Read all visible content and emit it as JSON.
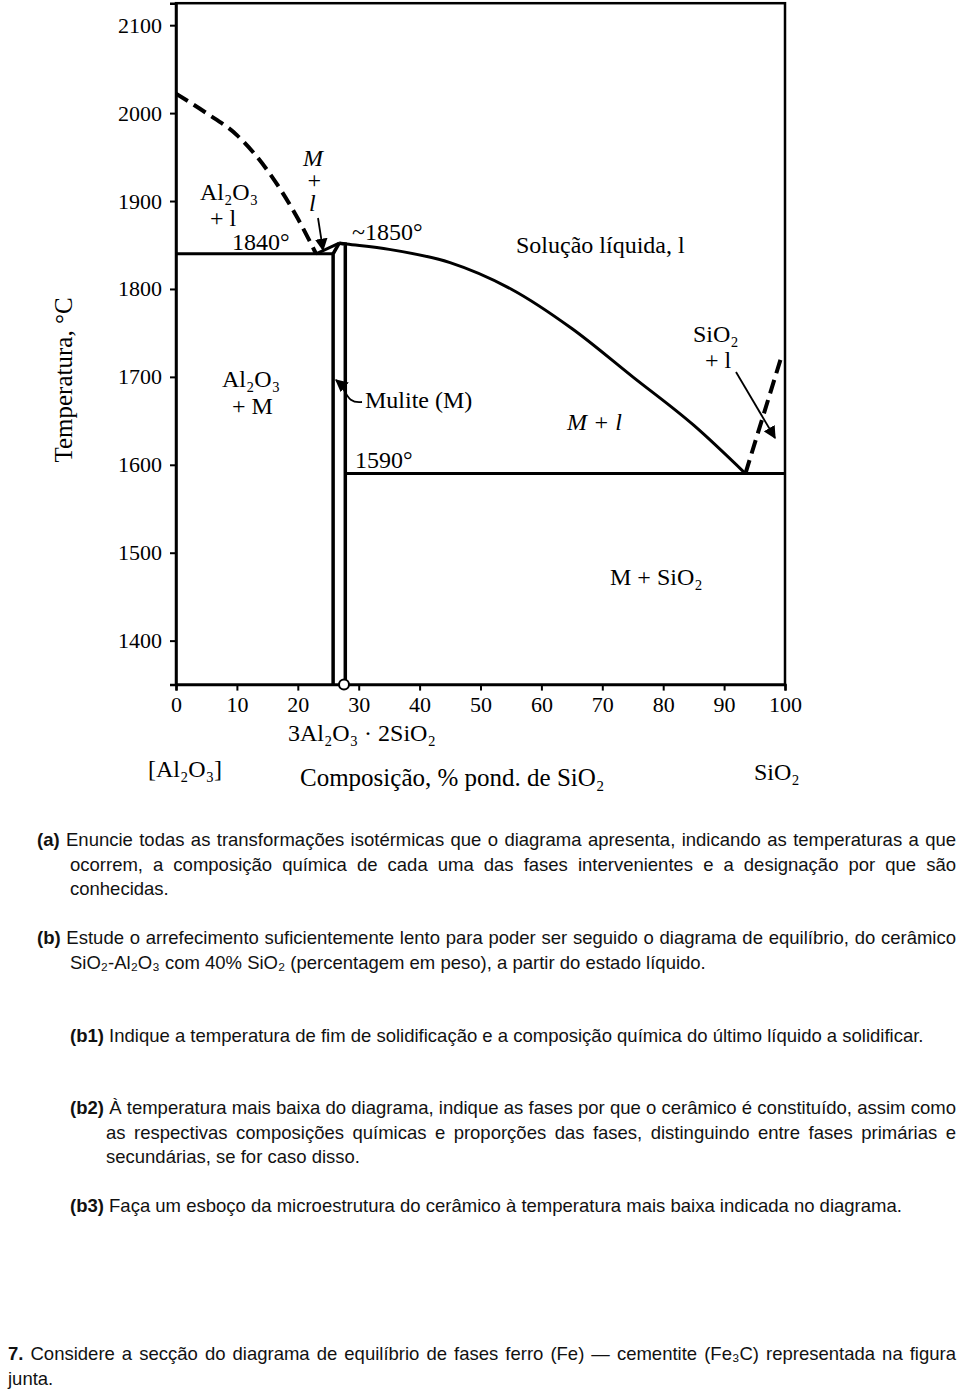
{
  "chart_data": {
    "type": "line",
    "x_label": "Composição, % pond. de SiO₂",
    "y_label": "Temperatura, °C",
    "xlim": [
      0,
      100
    ],
    "ylim": [
      1350,
      2125
    ],
    "xticks": [
      0,
      10,
      20,
      30,
      40,
      50,
      60,
      70,
      80,
      90,
      100
    ],
    "yticks": [
      1400,
      1500,
      1600,
      1700,
      1800,
      1900,
      2000,
      2100
    ],
    "series": [
      {
        "color": "#000000",
        "line_style": "dashed",
        "x": [
          0,
          5,
          10,
          15,
          20,
          23
        ],
        "values": [
          2022,
          2000,
          1975,
          1935,
          1880,
          1840
        ]
      },
      {
        "color": "#000000",
        "line_style": "solid",
        "x": [
          0,
          25.8
        ],
        "values": [
          1840,
          1840
        ]
      },
      {
        "color": "#000000",
        "line_style": "solid",
        "x": [
          23,
          26.8
        ],
        "values": [
          1840,
          1852
        ]
      },
      {
        "color": "#000000",
        "line_style": "solid",
        "x": [
          25.8,
          25.8,
          26.8
        ],
        "values": [
          1350,
          1840,
          1852
        ]
      },
      {
        "color": "#000000",
        "line_style": "solid",
        "x": [
          27.8,
          27.8,
          26.8
        ],
        "values": [
          1350,
          1851,
          1852
        ]
      },
      {
        "color": "#000000",
        "line_style": "solid",
        "x": [
          26.8,
          28,
          35,
          45,
          55,
          65,
          75,
          85,
          93.5
        ],
        "values": [
          1852,
          1851,
          1845,
          1830,
          1800,
          1755,
          1700,
          1645,
          1590
        ]
      },
      {
        "color": "#000000",
        "line_style": "solid",
        "x": [
          27.8,
          100
        ],
        "values": [
          1590,
          1590
        ]
      },
      {
        "color": "#000000",
        "line_style": "dashed",
        "x": [
          93.5,
          99.5
        ],
        "values": [
          1590,
          1725
        ]
      }
    ],
    "annotations": [
      [
        "Al₂O₃",
        "+ l"
      ],
      [
        "M",
        "+",
        "l"
      ],
      [
        "1840°"
      ],
      [
        "~1850°"
      ],
      [
        "Solução líquida, l"
      ],
      [
        "SiO₂",
        "+ l"
      ],
      [
        "Al₂O₃",
        "+ M"
      ],
      [
        "Mulite (M)"
      ],
      [
        "M + l"
      ],
      [
        "1590°"
      ],
      [
        "M + SiO₂"
      ],
      [
        "3Al₂O₃ · 2SiO₂"
      ],
      [
        "[Al₂O₃]"
      ],
      [
        "SiO₂"
      ]
    ]
  },
  "questions": [
    {
      "label": "(a)",
      "text": "Enuncie todas as transformações isotérmicas que o diagrama apresenta, indicando as temperaturas a que ocorrem, a composição química de cada uma das fases intervenientes e a designação por que são conhecidas."
    },
    {
      "label": "(b)",
      "text": "Estude o arrefecimento suficientemente lento para poder ser seguido o diagrama de equilíbrio, do cerâmico SiO₂-Al₂O₃ com 40% SiO₂ (percentagem em peso), a partir do estado líquido."
    },
    {
      "label": "(b1)",
      "text": "Indique a temperatura de fim de solidificação e a composição química do último líquido a solidificar."
    },
    {
      "label": "(b2)",
      "text": "À temperatura mais baixa do diagrama, indique as fases por que o cerâmico é constituído, assim como as respectivas composições químicas e proporções das fases, distinguindo entre fases primárias e secundárias, se for caso disso."
    },
    {
      "label": "(b3)",
      "text": "Faça um esboço da microestrutura do cerâmico à temperatura mais baixa indicada no diagrama."
    },
    {
      "label": "7.",
      "text": "Considere a secção do diagrama de equilíbrio de fases ferro (Fe) — cementite (Fe₃C) representada na figura junta."
    }
  ]
}
